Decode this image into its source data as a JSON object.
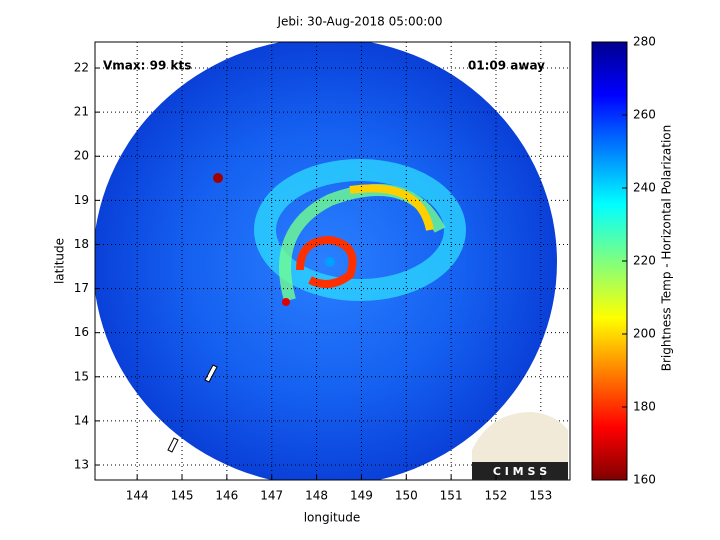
{
  "chart_data": {
    "type": "image",
    "title": "Jebi: 30-Aug-2018 05:00:00",
    "x_label": "longitude",
    "y_label": "latitude",
    "colorbar_label": "Brightness Temp - Horizontal Polarization",
    "annotations": [
      "Vmax: 99 kts",
      "01:09 away",
      "C I M S S"
    ],
    "xlim": [
      143.06,
      153.65
    ],
    "xticks": [
      144,
      145,
      146,
      147,
      148,
      149,
      150,
      151,
      152,
      153
    ],
    "ylim": [
      12.66,
      22.59
    ],
    "yticks": [
      13,
      14,
      15,
      16,
      17,
      18,
      19,
      20,
      21,
      22
    ],
    "clim": [
      160,
      280
    ],
    "cticks": [
      160,
      180,
      200,
      220,
      240,
      260,
      280
    ],
    "grid": true
  }
}
